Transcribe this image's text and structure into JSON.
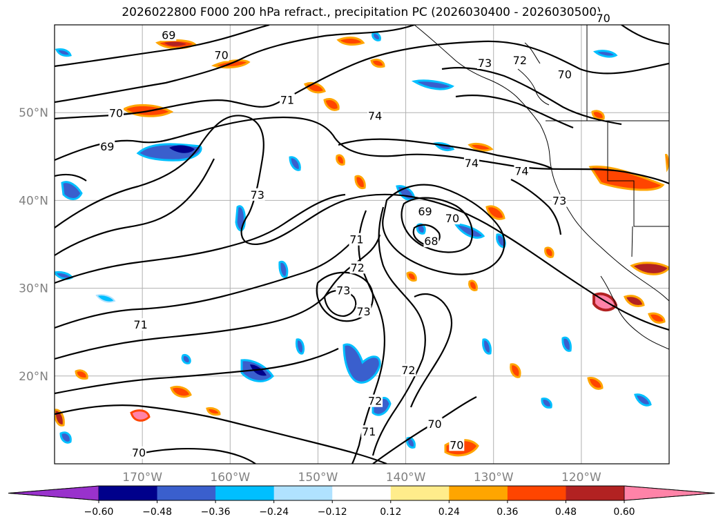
{
  "title": "2026022800 F000 200 hPa refract., precipitation PC (2026030400 - 2026030500)",
  "map": {
    "lat_labels": [
      "50°N",
      "40°N",
      "30°N",
      "20°N"
    ],
    "lon_labels": [
      "170°W",
      "160°W",
      "150°W",
      "140°W",
      "130°W",
      "120°W"
    ],
    "lat_values": [
      50,
      40,
      30,
      20
    ],
    "lon_values": [
      -170,
      -160,
      -150,
      -140,
      -130,
      -120
    ],
    "extent": {
      "lon_min": -180,
      "lon_max": -110,
      "lat_min": 10,
      "lat_max": 60
    },
    "grid": true,
    "contour_labels": [
      {
        "text": "69",
        "lon": -167,
        "lat": 58.8
      },
      {
        "text": "70",
        "lon": -161,
        "lat": 56.5
      },
      {
        "text": "70",
        "lon": -173,
        "lat": 49.9
      },
      {
        "text": "71",
        "lon": -153.5,
        "lat": 51.4
      },
      {
        "text": "74",
        "lon": -143.5,
        "lat": 49.6
      },
      {
        "text": "73",
        "lon": -131,
        "lat": 55.6
      },
      {
        "text": "72",
        "lon": -127,
        "lat": 55.9
      },
      {
        "text": "70",
        "lon": -121.9,
        "lat": 54.3
      },
      {
        "text": "70",
        "lon": -117.5,
        "lat": 60.7
      },
      {
        "text": "69",
        "lon": -174,
        "lat": 46.1
      },
      {
        "text": "74",
        "lon": -132.5,
        "lat": 44.2
      },
      {
        "text": "74",
        "lon": -126.8,
        "lat": 43.3
      },
      {
        "text": "73",
        "lon": -156.9,
        "lat": 40.6
      },
      {
        "text": "73",
        "lon": -122.5,
        "lat": 39.9
      },
      {
        "text": "69",
        "lon": -137.8,
        "lat": 38.7
      },
      {
        "text": "70",
        "lon": -134.7,
        "lat": 37.9
      },
      {
        "text": "68",
        "lon": -137.1,
        "lat": 35.3
      },
      {
        "text": "71",
        "lon": -145.6,
        "lat": 35.5
      },
      {
        "text": "72",
        "lon": -145.5,
        "lat": 32.3
      },
      {
        "text": "73",
        "lon": -147.1,
        "lat": 29.7
      },
      {
        "text": "73",
        "lon": -144.8,
        "lat": 27.3
      },
      {
        "text": "71",
        "lon": -170.2,
        "lat": 25.8
      },
      {
        "text": "72",
        "lon": -139.7,
        "lat": 20.6
      },
      {
        "text": "72",
        "lon": -143.5,
        "lat": 17.1
      },
      {
        "text": "71",
        "lon": -144.2,
        "lat": 13.6
      },
      {
        "text": "70",
        "lon": -136.7,
        "lat": 14.5
      },
      {
        "text": "70",
        "lon": -134.2,
        "lat": 12.1
      },
      {
        "text": "70",
        "lon": -170.4,
        "lat": 11.2
      }
    ]
  },
  "colorbar": {
    "ticks": [
      "−0.60",
      "−0.48",
      "−0.36",
      "−0.24",
      "−0.12",
      "0.12",
      "0.24",
      "0.36",
      "0.48",
      "0.60"
    ],
    "colors": [
      "#9932cc",
      "#00008b",
      "#3a5fcd",
      "#00bfff",
      "#b0e2ff",
      "#ffffff",
      "#ffec8b",
      "#ffa500",
      "#ff4500",
      "#b22222",
      "#ff83a8"
    ],
    "extend": "both"
  }
}
